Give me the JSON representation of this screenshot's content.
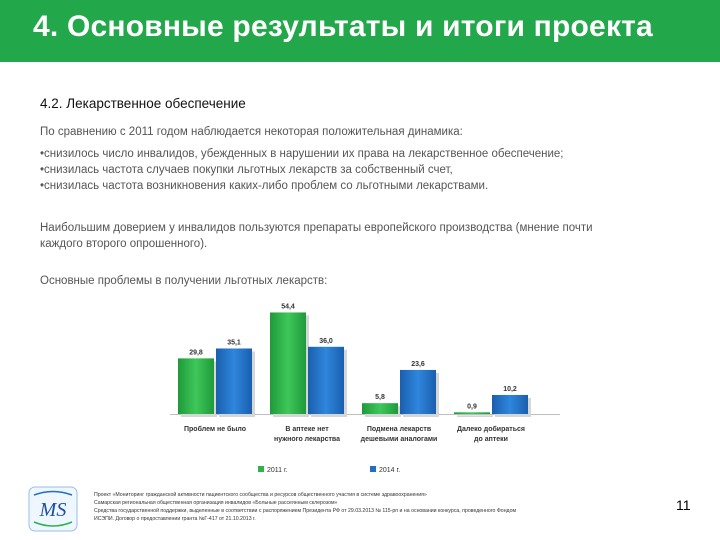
{
  "header": {
    "title": "4. Основные результаты и итоги проекта"
  },
  "section": {
    "heading": "4.2. Лекарственное обеспечение"
  },
  "text": {
    "intro": "По сравнению с 2011 годом наблюдается некоторая положительная динамика:",
    "bullets": [
      "•снизилось число инвалидов, убежденных в нарушении их права на лекарственное обеспечение;",
      "•снизилась частота случаев покупки льготных лекарств за собственный счет,",
      "•снизилась частота возникновения каких-либо проблем со льготными лекарствами."
    ],
    "trust_line1": "Наибольшим доверием у инвалидов пользуются препараты европейского производства (мнение почти",
    "trust_line2": "каждого второго опрошенного).",
    "problems_heading": "Основные проблемы в получении льготных лекарств:"
  },
  "chart_data": {
    "type": "bar",
    "categories": [
      [
        "Проблем не было"
      ],
      [
        "В аптеке нет",
        "нужного лекарства"
      ],
      [
        "Подмена лекарств",
        "дешевыми аналогами"
      ],
      [
        "Далеко добираться",
        "до аптеки"
      ]
    ],
    "series": [
      {
        "name": "2011 г.",
        "values": [
          29.8,
          54.4,
          5.8,
          0.9
        ],
        "labels": [
          "29,8",
          "54,4",
          "5,8",
          "0,9"
        ],
        "color": "#2db34a"
      },
      {
        "name": "2014 г.",
        "values": [
          35.1,
          36.0,
          23.6,
          10.2
        ],
        "labels": [
          "35,1",
          "36,0",
          "23,6",
          "10,2"
        ],
        "color": "#1f6fc5"
      }
    ],
    "ylim": [
      0,
      60
    ],
    "grid": false,
    "legend_position": "bottom"
  },
  "footer": {
    "lines": [
      "Проект «Мониторинг гражданской активности пациентского сообщества и ресурсов общественного участия в системе здравоохранения»",
      "Самарская региональная общественная организация инвалидов «Больные рассеянным склерозом»",
      "Средства государственной поддержки, выделенные в соответствии с распоряжением Президента РФ от 29.03.2013 № 115-рп и на основании конкурса, проведенного Фондом",
      "ИСЭПИ. Договор о предоставлении гранта №Г-417 от 21.10.2013 г."
    ],
    "logo_letters": "MS"
  },
  "page": {
    "number": "11"
  }
}
